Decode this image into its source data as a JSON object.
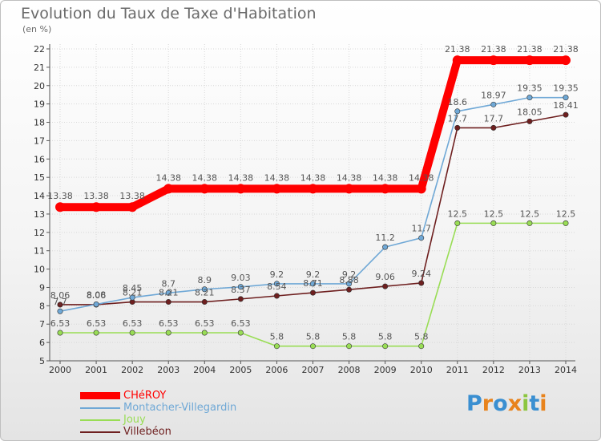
{
  "chart_data": {
    "type": "line",
    "title": "Evolution du Taux de Taxe d'Habitation",
    "subtitle": "(en %)",
    "xlabel": "",
    "ylabel": "",
    "x": [
      "2000",
      "2001",
      "2002",
      "2003",
      "2004",
      "2005",
      "2006",
      "2007",
      "2008",
      "2009",
      "2010",
      "2011",
      "2012",
      "2013",
      "2014"
    ],
    "ylim": [
      5,
      22
    ],
    "yticks": [
      "5",
      "6",
      "7",
      "8",
      "9",
      "10",
      "11",
      "12",
      "13",
      "14",
      "15",
      "16",
      "17",
      "18",
      "19",
      "20",
      "21",
      "22"
    ],
    "grid": true,
    "legend_position": "bottom-left",
    "series": [
      {
        "name": "CHéROY",
        "color": "#ff0000",
        "values": [
          13.38,
          13.38,
          13.38,
          14.38,
          14.38,
          14.38,
          14.38,
          14.38,
          14.38,
          14.38,
          14.38,
          21.38,
          21.38,
          21.38,
          21.38
        ],
        "labels": [
          "13.38",
          "13.38",
          "13.38",
          "14.38",
          "14.38",
          "14.38",
          "14.38",
          "14.38",
          "14.38",
          "14.38",
          "14.38",
          "21.38",
          "21.38",
          "21.38",
          "21.38"
        ]
      },
      {
        "name": "Montacher-Villegardin",
        "color": "#6fa8d6",
        "values": [
          7.7,
          8.08,
          8.45,
          8.7,
          8.9,
          9.03,
          9.2,
          9.2,
          9.2,
          11.2,
          11.7,
          18.6,
          18.97,
          19.35,
          19.35
        ],
        "labels": [
          "7.7",
          "8.08",
          "8.45",
          "8.7",
          "8.9",
          "9.03",
          "9.2",
          "9.2",
          "9.2",
          "11.2",
          "11.7",
          "18.6",
          "18.97",
          "19.35",
          "19.35"
        ]
      },
      {
        "name": "Jouy",
        "color": "#99dd55",
        "values": [
          6.53,
          6.53,
          6.53,
          6.53,
          6.53,
          6.53,
          5.8,
          5.8,
          5.8,
          5.8,
          5.8,
          12.5,
          12.5,
          12.5,
          12.5
        ],
        "labels": [
          "6.53",
          "6.53",
          "6.53",
          "6.53",
          "6.53",
          "6.53",
          "5.8",
          "5.8",
          "5.8",
          "5.8",
          "5.8",
          "12.5",
          "12.5",
          "12.5",
          "12.5"
        ]
      },
      {
        "name": "Villebéon",
        "color": "#6e1f1f",
        "values": [
          8.06,
          8.06,
          8.21,
          8.21,
          8.21,
          8.37,
          8.54,
          8.71,
          8.88,
          9.06,
          9.24,
          17.7,
          17.7,
          18.05,
          18.41
        ],
        "labels": [
          "8.06",
          "8.06",
          "8.21",
          "8.21",
          "8.21",
          "8.37",
          "8.54",
          "8.71",
          "8.88",
          "9.06",
          "9.24",
          "17.7",
          "17.7",
          "18.05",
          "18.41"
        ]
      }
    ]
  },
  "logo": {
    "letters": [
      "P",
      "r",
      "o",
      "x",
      "i",
      "t",
      "i"
    ],
    "colors": [
      "#3a8fd1",
      "#e8831c",
      "#3a8fd1",
      "#e8831c",
      "#8cc63f",
      "#3a8fd1",
      "#e8831c"
    ]
  }
}
